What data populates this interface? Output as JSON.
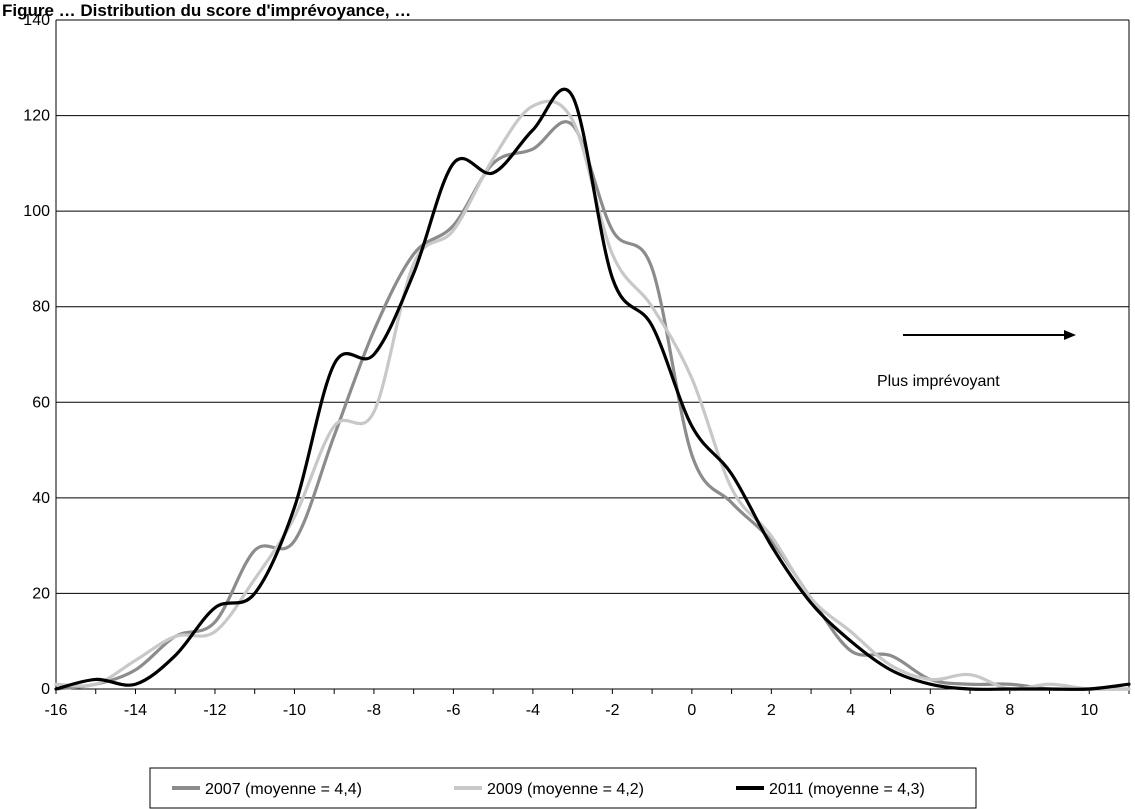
{
  "chart_data": {
    "type": "line",
    "title": "Figure … Distribution du score d'imprévoyance, …",
    "xlabel": "",
    "ylabel": "",
    "xlim": [
      -16,
      11
    ],
    "ylim": [
      0,
      140
    ],
    "x_ticks": [
      -16,
      -14,
      -12,
      -10,
      -8,
      -6,
      -4,
      -2,
      0,
      2,
      4,
      6,
      8,
      10
    ],
    "y_ticks": [
      0,
      20,
      40,
      60,
      80,
      100,
      120,
      140
    ],
    "grid": "horizontal",
    "legend_position": "bottom",
    "annotation": {
      "text": "Plus imprévoyant",
      "arrow": "right"
    },
    "colors": {
      "s2007": "#8c8c8c",
      "s2009": "#c8c8c8",
      "s2011": "#000000",
      "grid": "#000000"
    },
    "series": [
      {
        "name": "2007  (moyenne = 4,4)",
        "x": [
          -16,
          -15,
          -14,
          -13,
          -12,
          -11,
          -10,
          -9,
          -8,
          -7,
          -6,
          -5,
          -4,
          -3,
          -2,
          -1,
          0,
          1,
          2,
          3,
          4,
          5,
          6,
          7,
          8,
          9,
          10,
          11
        ],
        "values": [
          0,
          1,
          4,
          11,
          14,
          29,
          31,
          53,
          75,
          91,
          97,
          110,
          113,
          118,
          96,
          88,
          49,
          39,
          31,
          19,
          8,
          7,
          2,
          1,
          1,
          0,
          0,
          0
        ]
      },
      {
        "name": "2009 (moyenne = 4,2)",
        "x": [
          -16,
          -15,
          -14,
          -13,
          -12,
          -11,
          -10,
          -9,
          -8,
          -7,
          -6,
          -5,
          -4,
          -3,
          -2,
          -1,
          0,
          1,
          2,
          3,
          4,
          5,
          6,
          7,
          8,
          9,
          10,
          11
        ],
        "values": [
          1,
          1,
          6,
          11,
          12,
          23,
          36,
          55,
          58,
          89,
          96,
          111,
          122,
          119,
          91,
          80,
          65,
          42,
          32,
          19,
          12,
          5,
          2,
          3,
          0,
          1,
          0,
          0
        ]
      },
      {
        "name": "2011  (moyenne = 4,3)",
        "x": [
          -16,
          -15,
          -14,
          -13,
          -12,
          -11,
          -10,
          -9,
          -8,
          -7,
          -6,
          -5,
          -4,
          -3,
          -2,
          -1,
          0,
          1,
          2,
          3,
          4,
          5,
          6,
          7,
          8,
          9,
          10,
          11
        ],
        "values": [
          0,
          2,
          1,
          7,
          17,
          20,
          38,
          68,
          70,
          87,
          110,
          108,
          117,
          124,
          86,
          76,
          55,
          45,
          30,
          18,
          10,
          4,
          1,
          0,
          0,
          0,
          0,
          1
        ]
      }
    ]
  }
}
